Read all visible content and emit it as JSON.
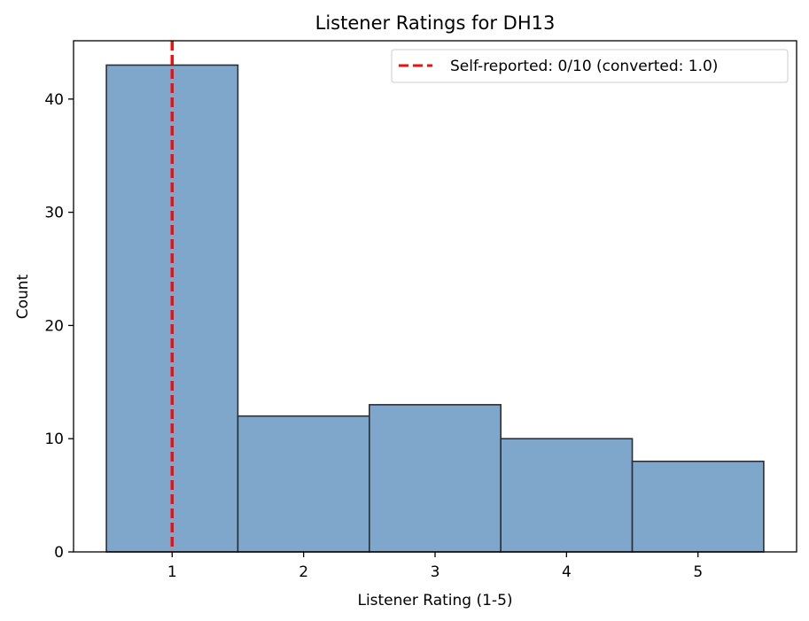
{
  "chart_data": {
    "type": "bar",
    "title": "Listener Ratings for DH13",
    "xlabel": "Listener Rating (1-5)",
    "ylabel": "Count",
    "categories": [
      "1",
      "2",
      "3",
      "4",
      "5"
    ],
    "x": [
      1,
      2,
      3,
      4,
      5
    ],
    "values": [
      43,
      12,
      13,
      10,
      8
    ],
    "xlim": [
      0.25,
      5.75
    ],
    "ylim": [
      0,
      45.15
    ],
    "xticks": [
      1,
      2,
      3,
      4,
      5
    ],
    "yticks": [
      0,
      10,
      20,
      30,
      40
    ],
    "bar_color": "#7fa7cb",
    "bar_edge_color": "#2b2f35",
    "reference_line": {
      "x": 1.0,
      "color": "#ee1111",
      "style": "dashed",
      "label": "Self-reported: 0/10 (converted: 1.0)"
    },
    "grid": false,
    "legend_position": "upper-right"
  }
}
